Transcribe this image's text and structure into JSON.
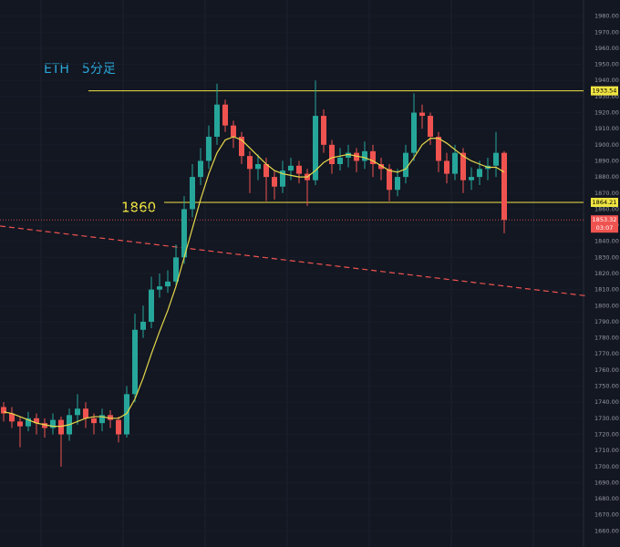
{
  "chart_data": {
    "type": "candlestick",
    "title": "ETH　5分足",
    "annotation": "1860",
    "ylim": [
      1650,
      1990
    ],
    "yticks": [
      {
        "value": 1660,
        "label": "1660.00"
      },
      {
        "value": 1670,
        "label": "1670.00"
      },
      {
        "value": 1680,
        "label": "1680.00"
      },
      {
        "value": 1690,
        "label": "1690.00"
      },
      {
        "value": 1700,
        "label": "1700.00"
      },
      {
        "value": 1710,
        "label": "1710.00"
      },
      {
        "value": 1720,
        "label": "1720.00"
      },
      {
        "value": 1730,
        "label": "1730.00"
      },
      {
        "value": 1740,
        "label": "1740.00"
      },
      {
        "value": 1750,
        "label": "1750.00"
      },
      {
        "value": 1760,
        "label": "1760.00"
      },
      {
        "value": 1770,
        "label": "1770.00"
      },
      {
        "value": 1780,
        "label": "1780.00"
      },
      {
        "value": 1790,
        "label": "1790.00"
      },
      {
        "value": 1800,
        "label": "1800.00"
      },
      {
        "value": 1810,
        "label": "1810.00"
      },
      {
        "value": 1820,
        "label": "1820.00"
      },
      {
        "value": 1830,
        "label": "1830.00"
      },
      {
        "value": 1840,
        "label": "1840.00"
      },
      {
        "value": 1850,
        "label": "1850.00"
      },
      {
        "value": 1860,
        "label": "1860.00"
      },
      {
        "value": 1870,
        "label": "1870.00"
      },
      {
        "value": 1880,
        "label": "1880.00"
      },
      {
        "value": 1890,
        "label": "1890.00"
      },
      {
        "value": 1900,
        "label": "1900.00"
      },
      {
        "value": 1910,
        "label": "1910.00"
      },
      {
        "value": 1920,
        "label": "1920.00"
      },
      {
        "value": 1930,
        "label": "1930.00"
      },
      {
        "value": 1940,
        "label": "1940.00"
      },
      {
        "value": 1950,
        "label": "1950.00"
      },
      {
        "value": 1960,
        "label": "1960.00"
      },
      {
        "value": 1970,
        "label": "1970.00"
      },
      {
        "value": 1980,
        "label": "1980.00"
      }
    ],
    "up_color": "#26a69a",
    "down_color": "#ef5350",
    "open": [
      1737,
      1733,
      1728,
      1725,
      1730,
      1727,
      1724,
      1729,
      1720,
      1732,
      1736,
      1730,
      1727,
      1732,
      1729,
      1720,
      1745,
      1785,
      1790,
      1810,
      1812,
      1815,
      1830,
      1860,
      1880,
      1890,
      1905,
      1925,
      1912,
      1905,
      1893,
      1885,
      1888,
      1880,
      1874,
      1884,
      1887,
      1882,
      1878,
      1918,
      1900,
      1888,
      1892,
      1895,
      1890,
      1896,
      1888,
      1885,
      1872,
      1880,
      1895,
      1920,
      1918,
      1905,
      1890,
      1882,
      1895,
      1878,
      1880,
      1885,
      1887,
      1895
    ],
    "high": [
      1740,
      1737,
      1731,
      1734,
      1733,
      1730,
      1733,
      1731,
      1736,
      1745,
      1740,
      1733,
      1736,
      1735,
      1731,
      1750,
      1795,
      1800,
      1818,
      1820,
      1822,
      1838,
      1868,
      1888,
      1898,
      1912,
      1938,
      1928,
      1915,
      1908,
      1896,
      1894,
      1892,
      1884,
      1890,
      1892,
      1890,
      1885,
      1940,
      1922,
      1903,
      1898,
      1900,
      1898,
      1902,
      1900,
      1892,
      1888,
      1885,
      1900,
      1932,
      1925,
      1920,
      1908,
      1895,
      1900,
      1898,
      1886,
      1890,
      1892,
      1908,
      1896
    ],
    "low": [
      1728,
      1724,
      1712,
      1722,
      1720,
      1718,
      1720,
      1700,
      1716,
      1726,
      1724,
      1720,
      1722,
      1724,
      1715,
      1718,
      1740,
      1780,
      1786,
      1805,
      1808,
      1812,
      1826,
      1855,
      1875,
      1885,
      1900,
      1908,
      1898,
      1888,
      1870,
      1878,
      1865,
      1866,
      1870,
      1878,
      1876,
      1862,
      1875,
      1895,
      1882,
      1884,
      1886,
      1883,
      1885,
      1880,
      1878,
      1865,
      1868,
      1876,
      1890,
      1910,
      1900,
      1883,
      1876,
      1878,
      1870,
      1872,
      1875,
      1878,
      1880,
      1845
    ],
    "close": [
      1733,
      1728,
      1725,
      1730,
      1727,
      1724,
      1729,
      1720,
      1732,
      1736,
      1730,
      1727,
      1732,
      1729,
      1720,
      1745,
      1785,
      1790,
      1810,
      1812,
      1815,
      1830,
      1860,
      1880,
      1890,
      1905,
      1925,
      1912,
      1905,
      1893,
      1885,
      1888,
      1880,
      1874,
      1884,
      1887,
      1882,
      1878,
      1918,
      1900,
      1888,
      1892,
      1895,
      1890,
      1896,
      1888,
      1885,
      1872,
      1880,
      1895,
      1920,
      1918,
      1905,
      1890,
      1882,
      1895,
      1878,
      1880,
      1885,
      1887,
      1895,
      1853.32
    ],
    "ma": {
      "color": "#e6d84a",
      "values": [
        1734,
        1733,
        1731,
        1729,
        1727,
        1726,
        1725,
        1725,
        1726,
        1728,
        1730,
        1731,
        1731,
        1730,
        1730,
        1733,
        1742,
        1755,
        1770,
        1784,
        1797,
        1812,
        1830,
        1848,
        1866,
        1882,
        1895,
        1903,
        1905,
        1903,
        1898,
        1893,
        1888,
        1884,
        1882,
        1881,
        1880,
        1880,
        1884,
        1889,
        1892,
        1893,
        1894,
        1893,
        1892,
        1890,
        1887,
        1884,
        1883,
        1885,
        1892,
        1900,
        1904,
        1904,
        1901,
        1897,
        1893,
        1890,
        1888,
        1886,
        1886,
        1883
      ]
    },
    "hlines": [
      {
        "value": 1933.54,
        "color": "#f0e442"
      },
      {
        "value": 1864.21,
        "color": "#f0e442"
      }
    ],
    "trendline": {
      "values": [
        1849.5,
        1806
      ],
      "color": "#ef5350"
    },
    "last_price": 1853.32,
    "countdown": "03:07"
  }
}
